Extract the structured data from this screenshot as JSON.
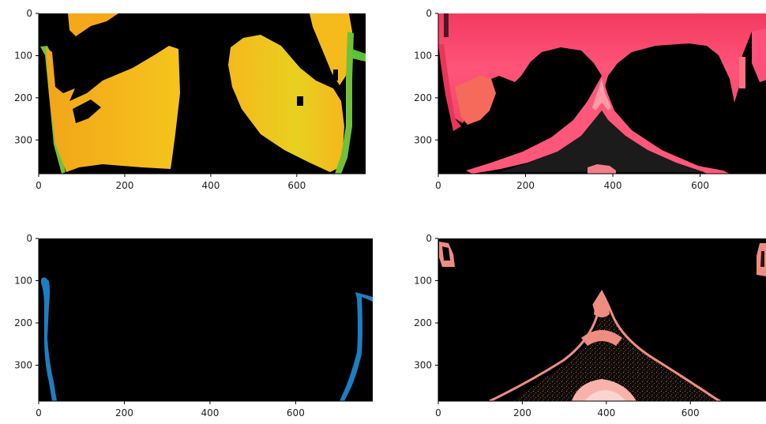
{
  "figure": {
    "layout": "2x2 image grid",
    "background": "#000000"
  },
  "chart_data": [
    {
      "type": "heatmap",
      "description": "",
      "colormap": "Wistia-like (orange/yellow, green edges)",
      "xlim": [
        0,
        760
      ],
      "ylim": [
        380,
        0
      ],
      "x_ticks": [
        "0",
        "200",
        "400",
        "600"
      ],
      "y_ticks": [
        "0",
        "100",
        "200",
        "300"
      ],
      "grid": false
    },
    {
      "type": "heatmap",
      "description": "",
      "colormap": "pink/red",
      "xlim": [
        0,
        760
      ],
      "ylim": [
        380,
        0
      ],
      "x_ticks": [
        "0",
        "200",
        "400",
        "600"
      ],
      "y_ticks": [
        "0",
        "100",
        "200",
        "300"
      ],
      "grid": false
    },
    {
      "type": "heatmap",
      "description": "",
      "colormap": "blue",
      "xlim": [
        0,
        780
      ],
      "ylim": [
        385,
        0
      ],
      "x_ticks": [
        "0",
        "200",
        "400",
        "600"
      ],
      "y_ticks": [
        "0",
        "100",
        "200",
        "300"
      ],
      "grid": false
    },
    {
      "type": "heatmap",
      "description": "",
      "colormap": "salmon",
      "xlim": [
        0,
        780
      ],
      "ylim": [
        385,
        0
      ],
      "x_ticks": [
        "0",
        "200",
        "400",
        "600"
      ],
      "y_ticks": [
        "0",
        "100",
        "200",
        "300"
      ],
      "grid": false
    }
  ],
  "colors": {
    "yellow": "#f2c21d",
    "orange": "#f4a21a",
    "green": "#59c23a",
    "pink": "#ff4f7b",
    "red": "#e9355b",
    "blue": "#1d7fc3",
    "salmon": "#ef8d82",
    "salmon_light": "#f7b3ab"
  }
}
